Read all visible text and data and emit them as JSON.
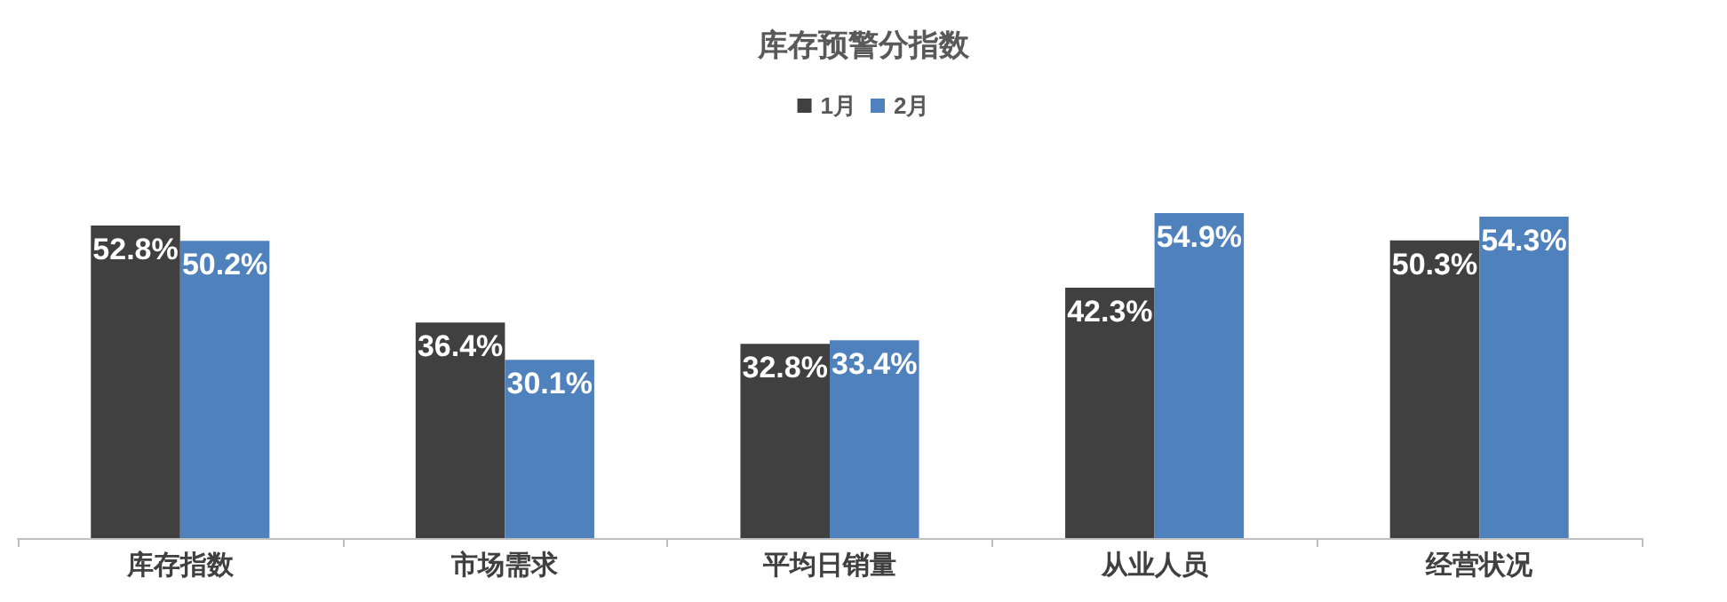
{
  "chart_data": {
    "type": "bar",
    "title": "库存预警分指数",
    "categories": [
      "库存指数",
      "市场需求",
      "平均日销量",
      "从业人员",
      "经营状况"
    ],
    "series": [
      {
        "name": "1月",
        "color": "#404040",
        "values": [
          52.8,
          36.4,
          32.8,
          42.3,
          50.3
        ],
        "value_labels": [
          "52.8%",
          "36.4%",
          "32.8%",
          "42.3%",
          "50.3%"
        ]
      },
      {
        "name": "2月",
        "color": "#4f81bd",
        "values": [
          50.2,
          30.1,
          33.4,
          54.9,
          54.3
        ],
        "value_labels": [
          "50.2%",
          "30.1%",
          "33.4%",
          "54.9%",
          "54.3%"
        ]
      }
    ],
    "legend": "top"
  }
}
